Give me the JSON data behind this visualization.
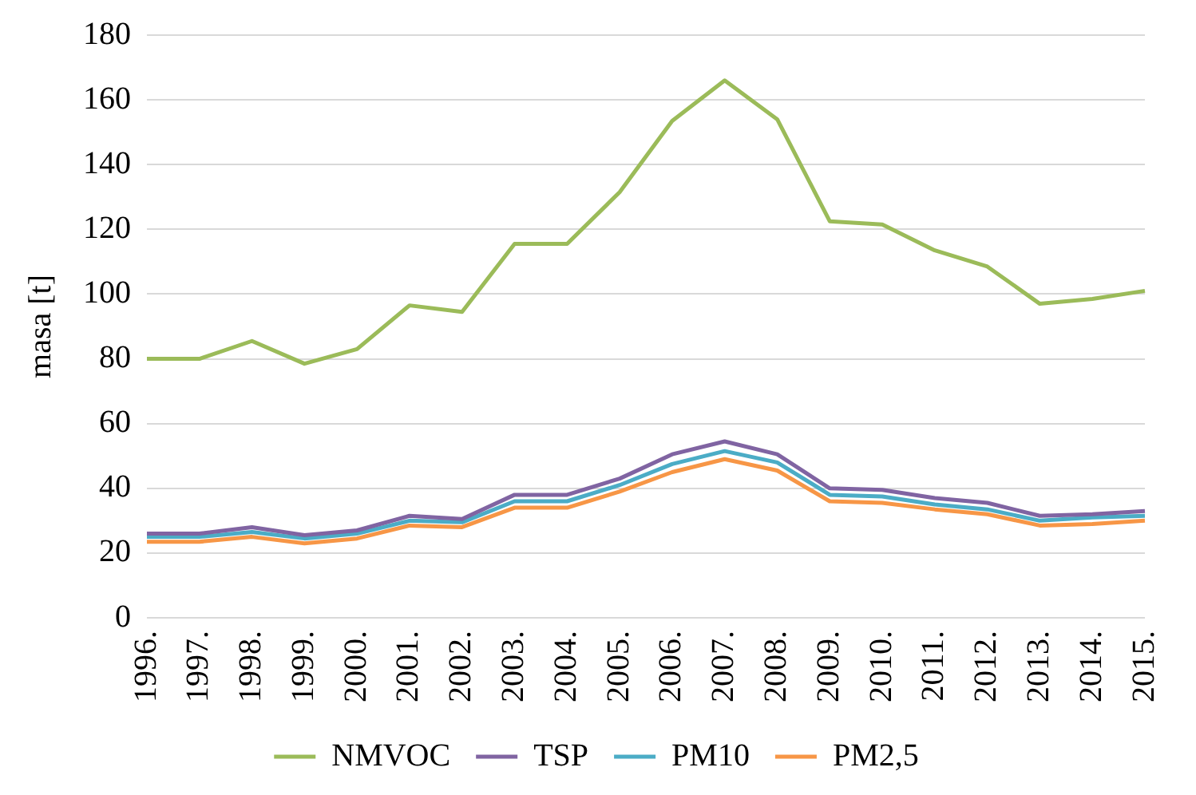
{
  "chart_data": {
    "type": "line",
    "ylabel": "masa [t]",
    "categories": [
      "1996.",
      "1997.",
      "1998.",
      "1999.",
      "2000.",
      "2001.",
      "2002.",
      "2003.",
      "2004.",
      "2005.",
      "2006.",
      "2007.",
      "2008.",
      "2009.",
      "2010.",
      "2011.",
      "2012.",
      "2013.",
      "2014.",
      "2015."
    ],
    "series": [
      {
        "name": "NMVOC",
        "color": "#9bbb59",
        "values": [
          80,
          80,
          85.5,
          78.5,
          83,
          96.5,
          94.5,
          115.5,
          115.5,
          131.5,
          153.5,
          166,
          154,
          122.5,
          121.5,
          113.5,
          108.5,
          97,
          98.5,
          101
        ]
      },
      {
        "name": "TSP",
        "color": "#8064a2",
        "values": [
          26,
          26,
          28,
          25.5,
          27,
          31.5,
          30.5,
          38,
          38,
          43,
          50.5,
          54.5,
          50.5,
          40,
          39.5,
          37,
          35.5,
          31.5,
          32,
          33
        ]
      },
      {
        "name": "PM10",
        "color": "#4bacc6",
        "values": [
          25,
          25,
          26.5,
          24.5,
          26,
          30,
          29.5,
          36,
          36,
          41,
          47.5,
          51.5,
          48,
          38,
          37.5,
          35,
          33.5,
          30,
          31,
          31.5
        ]
      },
      {
        "name": "PM2,5",
        "color": "#f79646",
        "values": [
          23.5,
          23.5,
          25,
          23,
          24.5,
          28.5,
          28,
          34,
          34,
          39,
          45,
          49,
          45.5,
          36,
          35.5,
          33.5,
          32,
          28.5,
          29,
          30
        ]
      }
    ],
    "ylim": [
      0,
      180
    ],
    "yticks": [
      0,
      20,
      40,
      60,
      80,
      100,
      120,
      140,
      160,
      180
    ],
    "grid": "y",
    "legend": "bottom",
    "marker": "none",
    "line_style": "solid"
  }
}
